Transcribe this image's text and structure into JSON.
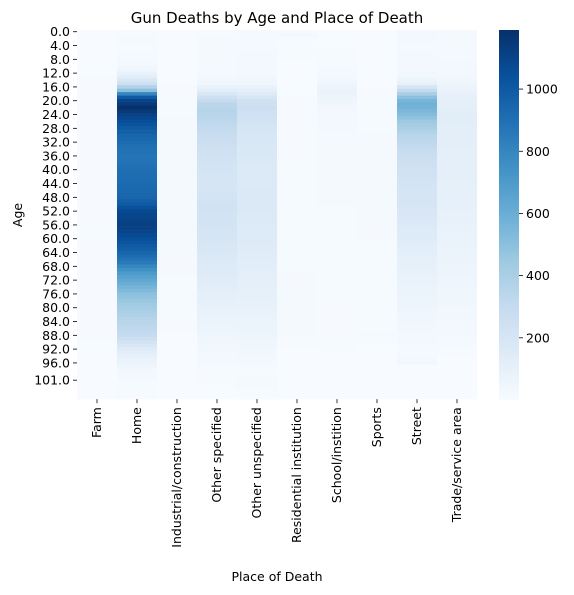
{
  "chart_data": {
    "type": "heatmap",
    "title": "Gun Deaths by Age and Place of Death",
    "xlabel": "Place of Death",
    "ylabel": "Age",
    "x_categories": [
      "Farm",
      "Home",
      "Industrial/construction",
      "Other specified",
      "Other unspecified",
      "Residential institution",
      "School/instition",
      "Sports",
      "Street",
      "Trade/service area"
    ],
    "y_tick_labels": [
      "0.0",
      "4.0",
      "8.0",
      "12.0",
      "16.0",
      "20.0",
      "24.0",
      "28.0",
      "32.0",
      "36.0",
      "40.0",
      "44.0",
      "48.0",
      "52.0",
      "56.0",
      "60.0",
      "64.0",
      "68.0",
      "72.0",
      "76.0",
      "80.0",
      "84.0",
      "88.0",
      "92.0",
      "96.0",
      "101.0"
    ],
    "colormap": "Blues",
    "color_low": "#f7fbff",
    "color_high": "#08306b",
    "vmin": 0,
    "vmax": 1190,
    "colorbar_ticks": [
      200,
      400,
      600,
      800,
      1000
    ],
    "profiles": [
      {
        "category": "Farm",
        "ages": [
          0,
          11,
          13,
          30,
          60,
          80,
          92,
          94,
          107
        ],
        "values": [
          0,
          1,
          5,
          8,
          9,
          7,
          4,
          1,
          0
        ]
      },
      {
        "category": "Home",
        "ages": [
          0,
          2,
          5,
          8,
          11,
          13,
          15,
          17,
          18,
          19,
          20,
          21,
          22,
          23,
          25,
          28,
          30,
          33,
          36,
          40,
          44,
          48,
          50,
          52,
          54,
          56,
          58,
          60,
          62,
          64,
          67,
          70,
          73,
          76,
          80,
          84,
          88,
          90,
          92,
          95,
          98,
          101,
          107
        ],
        "values": [
          10,
          15,
          12,
          20,
          45,
          120,
          250,
          500,
          800,
          1000,
          1100,
          1150,
          1190,
          1150,
          1080,
          1000,
          950,
          900,
          880,
          900,
          920,
          950,
          1000,
          1080,
          1100,
          1120,
          1100,
          1050,
          1000,
          950,
          850,
          700,
          600,
          500,
          420,
          350,
          300,
          220,
          150,
          80,
          40,
          15,
          5
        ]
      },
      {
        "category": "Industrial/construction",
        "ages": [
          0,
          14,
          16,
          20,
          30,
          45,
          60,
          70,
          80,
          88,
          90,
          107
        ],
        "values": [
          0,
          0,
          5,
          12,
          16,
          18,
          16,
          14,
          10,
          4,
          0,
          0
        ]
      },
      {
        "category": "Other specified",
        "ages": [
          0,
          6,
          12,
          15,
          17,
          19,
          21,
          23,
          26,
          30,
          35,
          40,
          45,
          50,
          55,
          60,
          65,
          70,
          75,
          80,
          90,
          96,
          100,
          107
        ],
        "values": [
          12,
          18,
          22,
          45,
          120,
          250,
          340,
          360,
          330,
          280,
          240,
          210,
          200,
          230,
          220,
          200,
          170,
          150,
          120,
          90,
          45,
          20,
          8,
          0
        ]
      },
      {
        "category": "Other unspecified",
        "ages": [
          0,
          8,
          12,
          15,
          18,
          20,
          22,
          25,
          30,
          40,
          50,
          60,
          70,
          80,
          90,
          96,
          98,
          102,
          107
        ],
        "values": [
          20,
          25,
          30,
          50,
          150,
          240,
          260,
          230,
          190,
          160,
          170,
          150,
          120,
          90,
          50,
          25,
          10,
          20,
          0
        ]
      },
      {
        "category": "Residential institution",
        "ages": [
          0,
          1,
          2,
          14,
          16,
          20,
          30,
          45,
          60,
          75,
          85,
          90,
          92,
          107
        ],
        "values": [
          8,
          30,
          8,
          0,
          3,
          6,
          8,
          10,
          12,
          15,
          18,
          12,
          0,
          0
        ]
      },
      {
        "category": "School/instition",
        "ages": [
          0,
          5,
          10,
          13,
          15,
          17,
          19,
          22,
          30,
          50,
          70,
          85,
          90,
          92,
          94,
          107
        ],
        "values": [
          0,
          5,
          15,
          30,
          50,
          75,
          60,
          35,
          20,
          14,
          10,
          8,
          10,
          5,
          0,
          0
        ]
      },
      {
        "category": "Sports",
        "ages": [
          0,
          15,
          17,
          20,
          30,
          45,
          60,
          75,
          85,
          88,
          90,
          92,
          107
        ],
        "values": [
          0,
          0,
          5,
          12,
          14,
          16,
          14,
          12,
          8,
          20,
          5,
          0,
          0
        ]
      },
      {
        "category": "Street",
        "ages": [
          0,
          4,
          10,
          13,
          15,
          17,
          19,
          20,
          21,
          22,
          24,
          26,
          30,
          35,
          40,
          45,
          50,
          55,
          60,
          65,
          70,
          75,
          80,
          85,
          90,
          94,
          96,
          97,
          107
        ],
        "values": [
          30,
          22,
          28,
          40,
          90,
          300,
          500,
          560,
          580,
          570,
          520,
          450,
          350,
          280,
          240,
          210,
          200,
          170,
          140,
          110,
          90,
          70,
          55,
          40,
          25,
          15,
          40,
          0,
          0
        ]
      },
      {
        "category": "Trade/service area",
        "ages": [
          0,
          5,
          10,
          14,
          17,
          20,
          25,
          30,
          40,
          50,
          60,
          70,
          80,
          90,
          93,
          94,
          107
        ],
        "values": [
          15,
          20,
          25,
          40,
          80,
          110,
          130,
          120,
          110,
          100,
          80,
          60,
          40,
          20,
          10,
          0,
          0
        ]
      }
    ],
    "colorbar": "right",
    "grid": false
  }
}
